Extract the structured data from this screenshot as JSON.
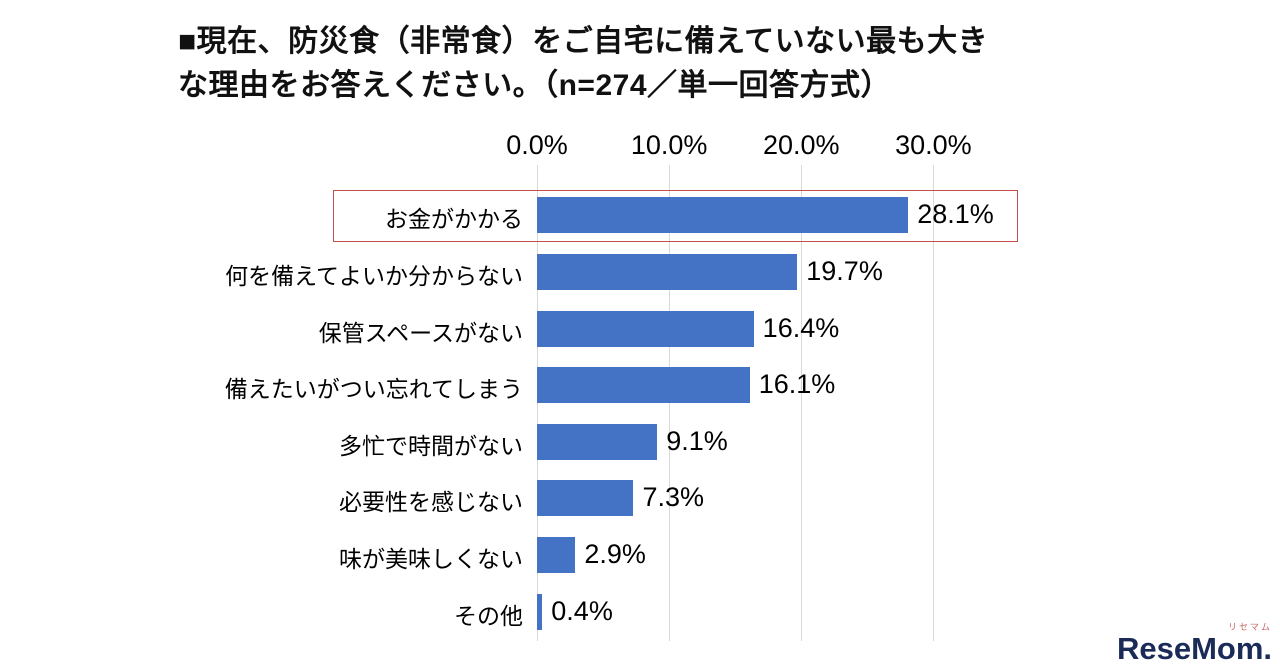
{
  "title_lines": [
    "■現在、防災食（非常食）をご自宅に備えていない最も大き",
    "な理由をお答えください。（n=274／単一回答方式）"
  ],
  "chart_data": {
    "type": "bar",
    "orientation": "horizontal",
    "title": "現在、防災食（非常食）をご自宅に備えていない最も大きな理由をお答えください。（n=274／単一回答方式）",
    "categories": [
      "お金がかかる",
      "何を備えてよいか分からない",
      "保管スペースがない",
      "備えたいがつい忘れてしまう",
      "多忙で時間がない",
      "必要性を感じない",
      "味が美味しくない",
      "その他"
    ],
    "values": [
      28.1,
      19.7,
      16.4,
      16.1,
      9.1,
      7.3,
      2.9,
      0.4
    ],
    "value_labels": [
      "28.1%",
      "19.7%",
      "16.4%",
      "16.1%",
      "9.1%",
      "7.3%",
      "2.9%",
      "0.4%"
    ],
    "x_ticks": [
      "0.0%",
      "10.0%",
      "20.0%",
      "30.0%"
    ],
    "x_tick_values": [
      0,
      10,
      20,
      30
    ],
    "xlim": [
      0,
      33
    ],
    "grid": true,
    "bar_color": "#4472C4",
    "highlight_index": 0,
    "highlight_border_color": "#C0504D",
    "legend": "none"
  },
  "logo": {
    "text": "ReseMom.",
    "sub": "リセマム",
    "color": "#1b2b57"
  }
}
